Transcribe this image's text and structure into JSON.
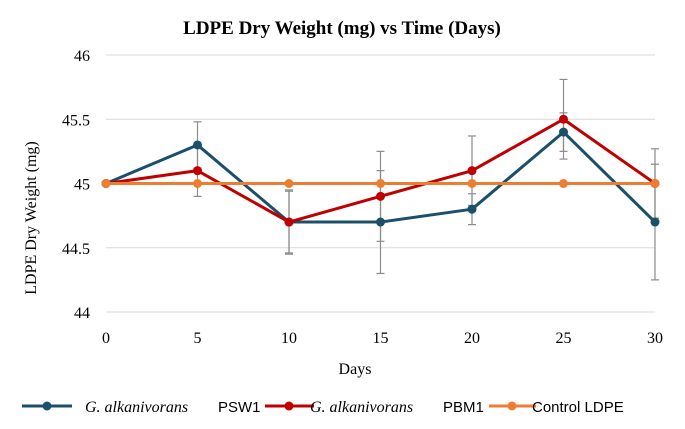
{
  "chart_data": {
    "type": "line",
    "title": "LDPE Dry Weight (mg) vs Time (Days)",
    "xlabel": "Days",
    "ylabel": "LDPE Dry Weight (mg)",
    "x": [
      0,
      5,
      10,
      15,
      20,
      25,
      30
    ],
    "xlim": [
      0,
      30
    ],
    "ylim": [
      44,
      46
    ],
    "yticks": [
      44,
      44.5,
      45,
      45.5,
      46
    ],
    "ytick_labels": [
      "44",
      "44.5",
      "45",
      "45.5",
      "46"
    ],
    "xtick_labels": [
      "0",
      "5",
      "10",
      "15",
      "20",
      "25",
      "30"
    ],
    "grid": "horizontal",
    "legend_position": "bottom",
    "series": [
      {
        "name_italic": "G. alkanivorans",
        "name_suffix": "PSW1",
        "color": "#1b4f6b",
        "values": [
          45.0,
          45.3,
          44.7,
          44.7,
          44.8,
          45.4,
          44.7
        ],
        "error": [
          0,
          0.18,
          0.24,
          0.4,
          0.12,
          0.15,
          0.45
        ]
      },
      {
        "name_italic": "G. alkanivorans",
        "name_suffix": "PBM1",
        "color": "#c00000",
        "values": [
          45.0,
          45.1,
          44.7,
          44.9,
          45.1,
          45.5,
          45.0
        ],
        "error": [
          0,
          0.2,
          0.25,
          0.35,
          0.27,
          0.31,
          0.27
        ]
      },
      {
        "name": "Control LDPE",
        "color": "#ed7d31",
        "values": [
          45.0,
          45.0,
          45.0,
          45.0,
          45.0,
          45.0,
          45.0
        ],
        "error": [
          0,
          0,
          0,
          0,
          0,
          0,
          0
        ]
      }
    ]
  }
}
